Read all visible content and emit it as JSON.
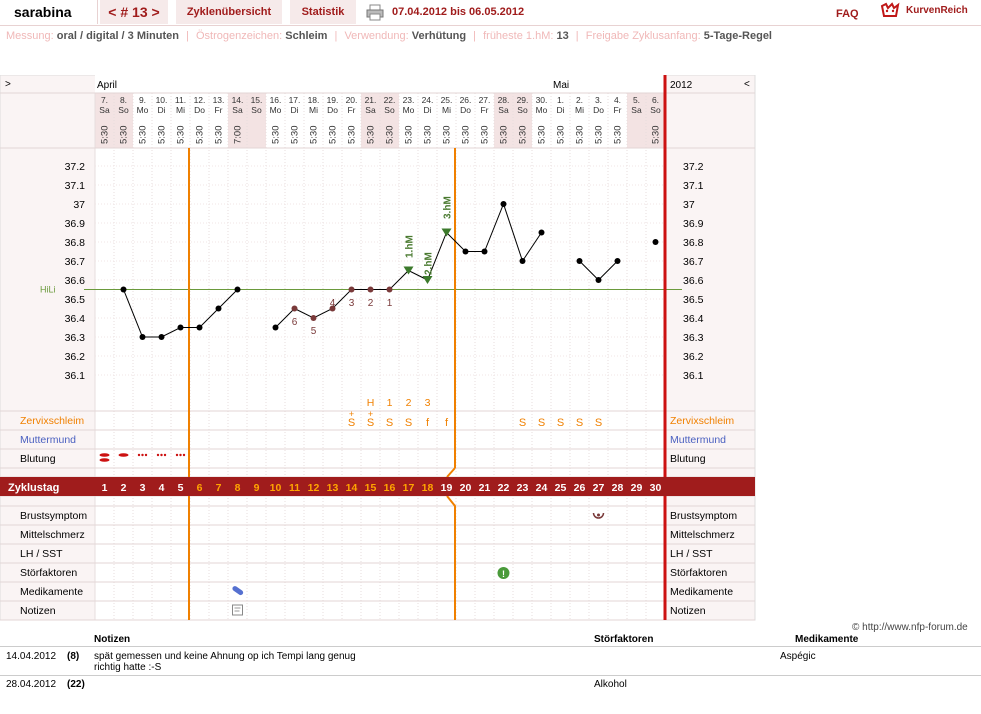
{
  "header": {
    "user": "sarabina",
    "cycle_nav": "< # 13 >",
    "tabs": [
      "Zyklenübersicht",
      "Statistik"
    ],
    "date_range": "07.04.2012 bis 06.05.2012",
    "faq": "FAQ",
    "brand": "KurvenReich"
  },
  "settings": [
    {
      "key": "Messung:",
      "value": "oral / digital / 3 Minuten"
    },
    {
      "key": "Östrogenzeichen:",
      "value": "Schleim"
    },
    {
      "key": "Verwendung:",
      "value": "Verhütung"
    },
    {
      "key": "früheste 1.hM:",
      "value": "13"
    },
    {
      "key": "Freigabe Zyklusanfang:",
      "value": "5-Tage-Regel"
    }
  ],
  "calendar": {
    "nav_left": ">",
    "nav_right": "<",
    "month_left": "April",
    "month_right": "Mai",
    "year": "2012",
    "days": [
      {
        "d": "7.",
        "w": "Sa",
        "t": "5:30"
      },
      {
        "d": "8.",
        "w": "So",
        "t": "5:30"
      },
      {
        "d": "9.",
        "w": "Mo",
        "t": "5:30"
      },
      {
        "d": "10.",
        "w": "Di",
        "t": "5:30"
      },
      {
        "d": "11.",
        "w": "Mi",
        "t": "5:30"
      },
      {
        "d": "12.",
        "w": "Do",
        "t": "5:30"
      },
      {
        "d": "13.",
        "w": "Fr",
        "t": "5:30"
      },
      {
        "d": "14.",
        "w": "Sa",
        "t": "7:00"
      },
      {
        "d": "15.",
        "w": "So",
        "t": ""
      },
      {
        "d": "16.",
        "w": "Mo",
        "t": "5:30"
      },
      {
        "d": "17.",
        "w": "Di",
        "t": "5:30"
      },
      {
        "d": "18.",
        "w": "Mi",
        "t": "5:30"
      },
      {
        "d": "19.",
        "w": "Do",
        "t": "5:30"
      },
      {
        "d": "20.",
        "w": "Fr",
        "t": "5:30"
      },
      {
        "d": "21.",
        "w": "Sa",
        "t": "5:30"
      },
      {
        "d": "22.",
        "w": "So",
        "t": "5:30"
      },
      {
        "d": "23.",
        "w": "Mo",
        "t": "5:30"
      },
      {
        "d": "24.",
        "w": "Di",
        "t": "5:30"
      },
      {
        "d": "25.",
        "w": "Mi",
        "t": "5:30"
      },
      {
        "d": "26.",
        "w": "Do",
        "t": "5:30"
      },
      {
        "d": "27.",
        "w": "Fr",
        "t": "5:30"
      },
      {
        "d": "28.",
        "w": "Sa",
        "t": "5:30"
      },
      {
        "d": "29.",
        "w": "So",
        "t": "5:30"
      },
      {
        "d": "30.",
        "w": "Mo",
        "t": "5:30"
      },
      {
        "d": "1.",
        "w": "Di",
        "t": "5:30"
      },
      {
        "d": "2.",
        "w": "Mi",
        "t": "5:30"
      },
      {
        "d": "3.",
        "w": "Do",
        "t": "5:30"
      },
      {
        "d": "4.",
        "w": "Fr",
        "t": "5:30"
      },
      {
        "d": "5.",
        "w": "Sa",
        "t": ""
      },
      {
        "d": "6.",
        "w": "So",
        "t": "5:30"
      }
    ]
  },
  "chart_data": {
    "type": "line",
    "y_ticks": [
      "37.2",
      "37.1",
      "37",
      "36.9",
      "36.8",
      "36.7",
      "36.6",
      "36.5",
      "36.4",
      "36.3",
      "36.2",
      "36.1"
    ],
    "ylim": [
      36.1,
      37.2
    ],
    "hili_label": "HiLi",
    "hili": 36.55,
    "temps": [
      null,
      36.55,
      36.3,
      36.3,
      36.35,
      36.35,
      36.45,
      36.55,
      null,
      36.35,
      36.45,
      36.4,
      36.45,
      36.55,
      36.55,
      36.55,
      36.65,
      36.6,
      36.85,
      36.75,
      36.75,
      37.0,
      36.7,
      36.85,
      null,
      36.7,
      36.6,
      36.7,
      null,
      36.8
    ],
    "segments": [
      [
        1,
        7
      ],
      [
        9,
        22
      ],
      [
        22,
        23
      ],
      [
        25,
        27
      ]
    ],
    "low_labels": [
      {
        "day": 10,
        "label": "6"
      },
      {
        "day": 11,
        "label": "5"
      },
      {
        "day": 12,
        "label": "4"
      },
      {
        "day": 13,
        "label": "3"
      },
      {
        "day": 14,
        "label": "2"
      },
      {
        "day": 15,
        "label": "1"
      }
    ],
    "hm_labels": [
      {
        "day": 16,
        "label": "1.hM"
      },
      {
        "day": 17,
        "label": "2.hM"
      },
      {
        "day": 18,
        "label": "3.hM"
      }
    ],
    "mucus_count": [
      {
        "day": 14,
        "label": "H"
      },
      {
        "day": 15,
        "label": "1"
      },
      {
        "day": 16,
        "label": "2"
      },
      {
        "day": 17,
        "label": "3"
      }
    ]
  },
  "rows": {
    "zervix": "Zervixschleim",
    "muttermund": "Muttermund",
    "blutung": "Blutung",
    "zyklustag": "Zyklustag",
    "brust": "Brustsymptom",
    "mittel": "Mittelschmerz",
    "lh": "LH / SST",
    "stoer": "Störfaktoren",
    "medi": "Medikamente",
    "notizen": "Notizen"
  },
  "mucus": [
    {
      "day": 13,
      "v": "S"
    },
    {
      "day": 14,
      "v": "S"
    },
    {
      "day": 15,
      "v": "S"
    },
    {
      "day": 16,
      "v": "S"
    },
    {
      "day": 17,
      "v": "f"
    },
    {
      "day": 18,
      "v": "f"
    },
    {
      "day": 22,
      "v": "S"
    },
    {
      "day": 23,
      "v": "S"
    },
    {
      "day": 24,
      "v": "S"
    },
    {
      "day": 25,
      "v": "S"
    },
    {
      "day": 26,
      "v": "S"
    }
  ],
  "cycle_days": [
    "1",
    "2",
    "3",
    "4",
    "5",
    "6",
    "7",
    "8",
    "9",
    "10",
    "11",
    "12",
    "13",
    "14",
    "15",
    "16",
    "17",
    "18",
    "19",
    "20",
    "21",
    "22",
    "23",
    "24",
    "25",
    "26",
    "27",
    "28",
    "29",
    "30"
  ],
  "colors": {
    "accent": "#a01c1c",
    "orange": "#f08000",
    "red": "#cc1111",
    "hili": "#6b9a3c"
  },
  "copyright": "© http://www.nfp-forum.de",
  "notes": {
    "headers": [
      "Notizen",
      "Störfaktoren",
      "Medikamente"
    ],
    "rows": [
      {
        "date": "14.04.2012",
        "day": "(8)",
        "note1": "spät gemessen und keine Ahnung op ich Tempi lang genug",
        "note2": "richtig hatte :-S",
        "stoer": "",
        "medi": "Aspégic"
      },
      {
        "date": "28.04.2012",
        "day": "(22)",
        "note1": "",
        "note2": "",
        "stoer": "Alkohol",
        "medi": ""
      }
    ]
  }
}
